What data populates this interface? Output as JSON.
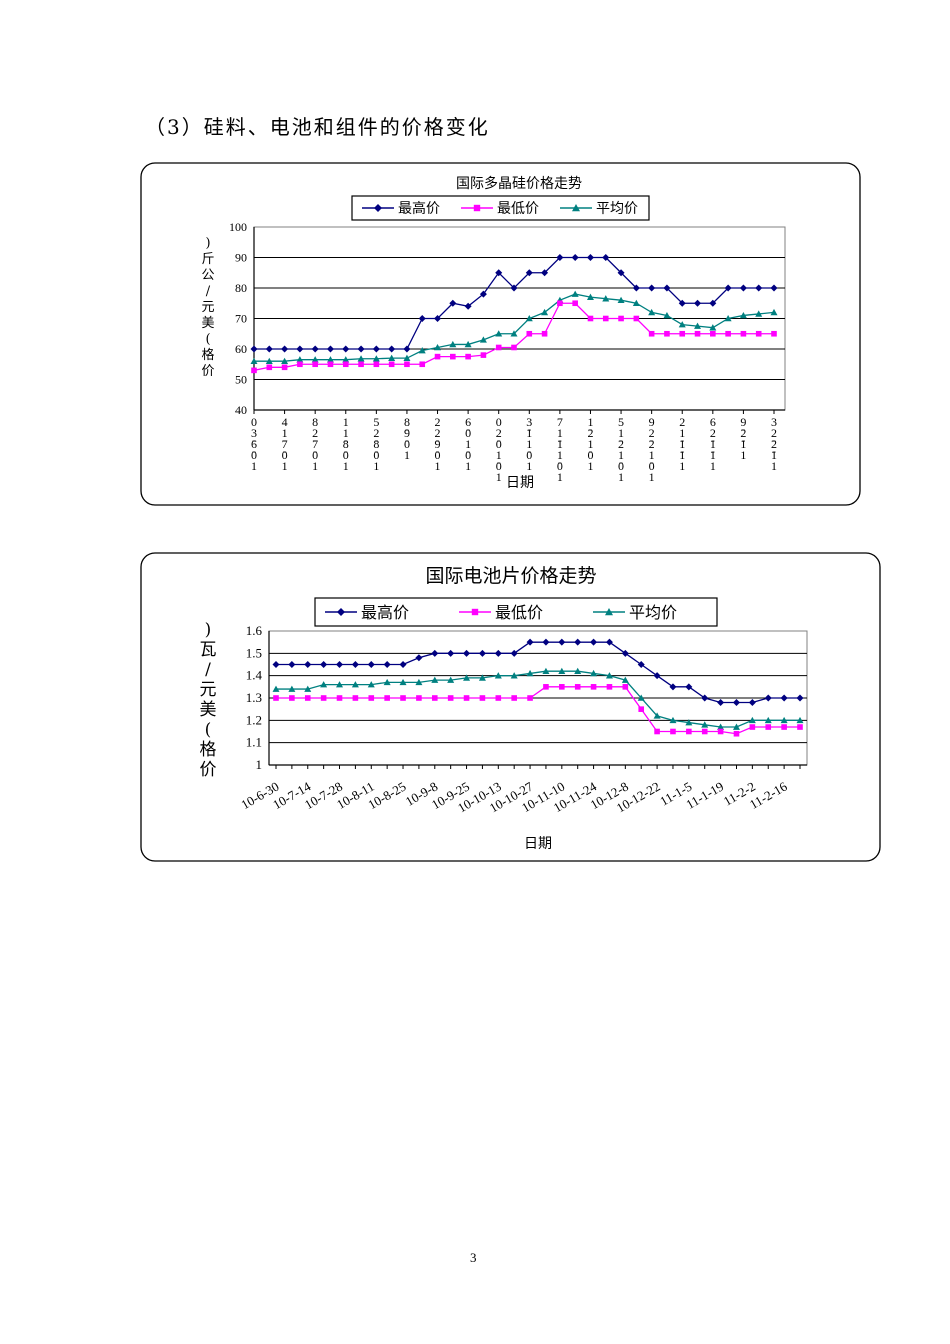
{
  "section_title": "（3）硅料、电池和组件的价格变化",
  "page_number": "3",
  "colors": {
    "max": "#000080",
    "min": "#ff00ff",
    "avg": "#008080",
    "grid": "#000000",
    "plot_border": "#808080"
  },
  "chart_data": [
    {
      "type": "line",
      "title": "国际多晶硅价格走势",
      "xlabel": "日期",
      "ylabel": "价格(美元/公斤)",
      "ylim": [
        40,
        100
      ],
      "yticks": [
        "40",
        "50",
        "60",
        "70",
        "80",
        "90",
        "100"
      ],
      "grid": true,
      "legend": "top",
      "xtick_labels": [
        "03-6-01",
        "41-7-01",
        "82-7-01",
        "11-8-01",
        "52-8-01",
        "8-9-01",
        "22-9-01",
        "6-01-01",
        "02-01-01",
        "3-11-01",
        "71-11-01",
        "1-21-01",
        "51-21-01",
        "92-21-01",
        "21-1-11",
        "62-1-11",
        "9-2-11",
        "32-2-11"
      ],
      "series": [
        {
          "name": "最高价",
          "marker": "diamond",
          "values": [
            60,
            60,
            60,
            60,
            60,
            60,
            60,
            60,
            60,
            60,
            60,
            70,
            70,
            75,
            74,
            78,
            85,
            80,
            85,
            85,
            90,
            90,
            90,
            90,
            85,
            80,
            80,
            80,
            75,
            75,
            75,
            80,
            80,
            80,
            80
          ]
        },
        {
          "name": "最低价",
          "marker": "square",
          "values": [
            53,
            54,
            54,
            55,
            55,
            55,
            55,
            55,
            55,
            55,
            55,
            55,
            57.5,
            57.5,
            57.5,
            58,
            60.5,
            60.5,
            65,
            65,
            75,
            75,
            70,
            70,
            70,
            70,
            65,
            65,
            65,
            65,
            65,
            65,
            65,
            65,
            65
          ]
        },
        {
          "name": "平均价",
          "marker": "triangle",
          "values": [
            56,
            56,
            56,
            56.5,
            56.5,
            56.5,
            56.5,
            56.8,
            56.8,
            57,
            57,
            59.5,
            60.5,
            61.5,
            61.5,
            63,
            65,
            65,
            70,
            72,
            76,
            78,
            77,
            76.5,
            76,
            75,
            72,
            71,
            68,
            67.5,
            67,
            70,
            71,
            71.5,
            72
          ]
        }
      ]
    },
    {
      "type": "line",
      "title": "国际电池片价格走势",
      "xlabel": "日期",
      "ylabel": "价格(美元/瓦)",
      "ylim": [
        1,
        1.6
      ],
      "yticks": [
        "1",
        "1.1",
        "1.2",
        "1.3",
        "1.4",
        "1.5",
        "1.6"
      ],
      "grid": true,
      "legend": "top",
      "xtick_labels": [
        "10-6-30",
        "10-7-14",
        "10-7-28",
        "10-8-11",
        "10-8-25",
        "10-9-8",
        "10-9-25",
        "10-10-13",
        "10-10-27",
        "10-11-10",
        "10-11-24",
        "10-12-8",
        "10-12-22",
        "11-1-5",
        "11-1-19",
        "11-2-2",
        "11-2-16"
      ],
      "series": [
        {
          "name": "最高价",
          "marker": "diamond",
          "values": [
            1.45,
            1.45,
            1.45,
            1.45,
            1.45,
            1.45,
            1.45,
            1.45,
            1.45,
            1.48,
            1.5,
            1.5,
            1.5,
            1.5,
            1.5,
            1.5,
            1.55,
            1.55,
            1.55,
            1.55,
            1.55,
            1.55,
            1.5,
            1.45,
            1.4,
            1.35,
            1.35,
            1.3,
            1.28,
            1.28,
            1.28,
            1.3,
            1.3,
            1.3
          ]
        },
        {
          "name": "最低价",
          "marker": "square",
          "values": [
            1.3,
            1.3,
            1.3,
            1.3,
            1.3,
            1.3,
            1.3,
            1.3,
            1.3,
            1.3,
            1.3,
            1.3,
            1.3,
            1.3,
            1.3,
            1.3,
            1.3,
            1.35,
            1.35,
            1.35,
            1.35,
            1.35,
            1.35,
            1.25,
            1.15,
            1.15,
            1.15,
            1.15,
            1.15,
            1.14,
            1.17,
            1.17,
            1.17,
            1.17
          ]
        },
        {
          "name": "平均价",
          "marker": "triangle",
          "values": [
            1.34,
            1.34,
            1.34,
            1.36,
            1.36,
            1.36,
            1.36,
            1.37,
            1.37,
            1.37,
            1.38,
            1.38,
            1.39,
            1.39,
            1.4,
            1.4,
            1.41,
            1.42,
            1.42,
            1.42,
            1.41,
            1.4,
            1.38,
            1.3,
            1.22,
            1.2,
            1.19,
            1.18,
            1.17,
            1.17,
            1.2,
            1.2,
            1.2,
            1.2
          ]
        }
      ]
    }
  ]
}
